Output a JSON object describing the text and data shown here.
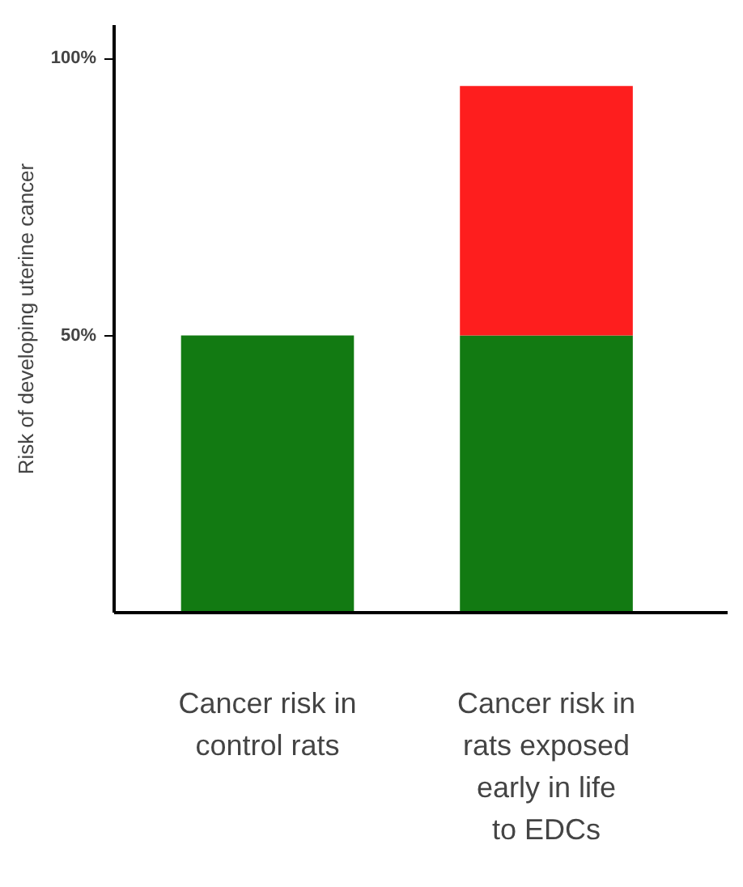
{
  "chart_data": {
    "type": "bar",
    "stacked": true,
    "ylabel": "Risk of developing uterine cancer",
    "categories": [
      "Cancer risk in control rats",
      "Cancer risk in rats exposed early in life to EDCs"
    ],
    "series": [
      {
        "color": "#127a12",
        "values": [
          50,
          50
        ]
      },
      {
        "color": "#fe1e1e",
        "values": [
          null,
          45
        ]
      }
    ],
    "ylim": [
      0,
      106
    ],
    "yticks": [
      {
        "value": 50,
        "label": "50%"
      },
      {
        "value": 100,
        "label": "100%"
      }
    ],
    "grid": false
  }
}
